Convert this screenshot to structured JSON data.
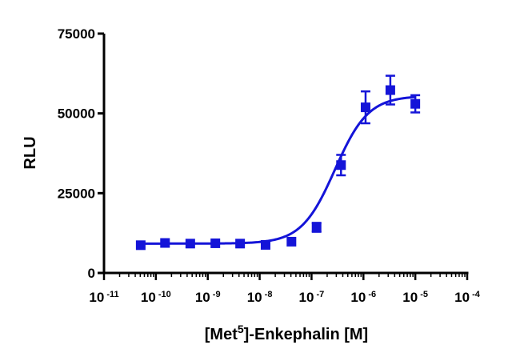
{
  "chart_data": {
    "type": "scatter",
    "title": "",
    "xlabel": "[Met5]-Enkephalin [M]",
    "xlabel_parts": {
      "pre": "[Met",
      "sup": "5",
      "post": "]-Enkephalin [M]"
    },
    "ylabel": "RLU",
    "xscale": "log",
    "xlim": [
      1e-11,
      0.0001
    ],
    "ylim": [
      0,
      75000
    ],
    "grid": false,
    "color": "#1414d8",
    "x_ticks": [
      {
        "base": "10",
        "exp": "-11",
        "value": 1e-11
      },
      {
        "base": "10",
        "exp": "-10",
        "value": 1e-10
      },
      {
        "base": "10",
        "exp": "-9",
        "value": 1e-09
      },
      {
        "base": "10",
        "exp": "-8",
        "value": 1e-08
      },
      {
        "base": "10",
        "exp": "-7",
        "value": 1e-07
      },
      {
        "base": "10",
        "exp": "-6",
        "value": 1e-06
      },
      {
        "base": "10",
        "exp": "-5",
        "value": 1e-05
      },
      {
        "base": "10",
        "exp": "-4",
        "value": 0.0001
      }
    ],
    "y_ticks": [
      {
        "label": "0",
        "value": 0
      },
      {
        "label": "25000",
        "value": 25000
      },
      {
        "label": "50000",
        "value": 50000
      },
      {
        "label": "75000",
        "value": 75000
      }
    ],
    "series": [
      {
        "marker": "square",
        "points": [
          {
            "x": 5.1e-11,
            "y": 8700,
            "err": 0
          },
          {
            "x": 1.5e-10,
            "y": 9400,
            "err": 0
          },
          {
            "x": 4.6e-10,
            "y": 9200,
            "err": 0
          },
          {
            "x": 1.4e-09,
            "y": 9300,
            "err": 0
          },
          {
            "x": 4.2e-09,
            "y": 9200,
            "err": 0
          },
          {
            "x": 1.3e-08,
            "y": 8800,
            "err": 0
          },
          {
            "x": 4.1e-08,
            "y": 9800,
            "err": 0
          },
          {
            "x": 1.25e-07,
            "y": 14300,
            "err": 1400
          },
          {
            "x": 3.7e-07,
            "y": 33800,
            "err": 3200
          },
          {
            "x": 1.1e-06,
            "y": 51900,
            "err": 5000
          },
          {
            "x": 3.3e-06,
            "y": 57300,
            "err": 4500
          },
          {
            "x": 1e-05,
            "y": 53000,
            "err": 2700
          }
        ],
        "fit": {
          "model": "sigmoidal dose-response",
          "bottom": 9200,
          "top": 55500,
          "log_ec50": -6.55,
          "hill": 1.35,
          "x_range": [
            5.1e-11,
            1e-05
          ]
        }
      }
    ]
  }
}
